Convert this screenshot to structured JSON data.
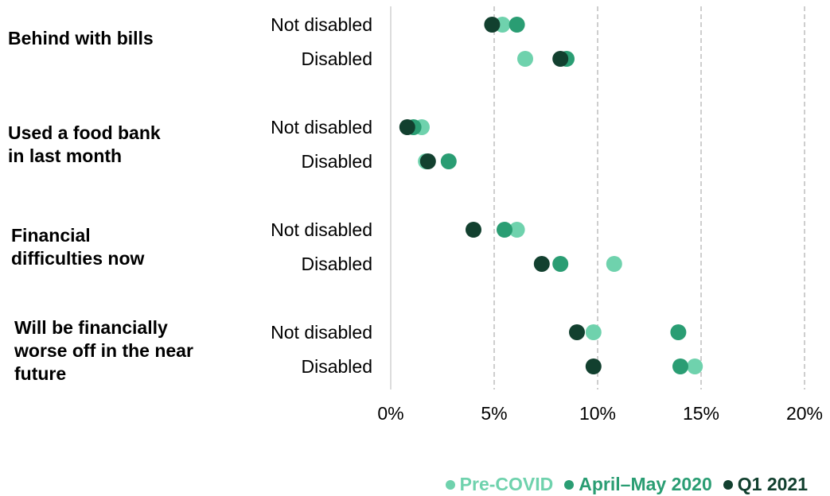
{
  "chart_data": {
    "type": "scatter",
    "xlim": [
      0,
      20
    ],
    "x_ticks": [
      "0%",
      "5%",
      "10%",
      "15%",
      "20%"
    ],
    "gridlines": "vertical dashed",
    "legend_position": "bottom-right",
    "groups": [
      {
        "label": "Behind with bills",
        "rows": [
          "Not disabled",
          "Disabled"
        ]
      },
      {
        "label": "Used a food bank\nin last month",
        "rows": [
          "Not disabled",
          "Disabled"
        ]
      },
      {
        "label": "Financial\ndifficulties now",
        "rows": [
          "Not disabled",
          "Disabled"
        ]
      },
      {
        "label": "Will be financially\nworse off in the near\nfuture",
        "rows": [
          "Not disabled",
          "Disabled"
        ]
      }
    ],
    "series": [
      {
        "name": "Pre-COVID",
        "color": "#6fd2ad",
        "values": [
          5.4,
          6.5,
          1.5,
          1.7,
          6.1,
          10.8,
          9.8,
          14.7
        ]
      },
      {
        "name": "April–May 2020",
        "color": "#2a9d73",
        "values": [
          6.1,
          8.5,
          1.1,
          2.8,
          5.5,
          8.2,
          13.9,
          14.0
        ]
      },
      {
        "name": "Q1 2021",
        "color": "#12402f",
        "values": [
          4.9,
          8.2,
          0.8,
          1.8,
          4.0,
          7.3,
          9.0,
          9.8
        ]
      }
    ]
  }
}
